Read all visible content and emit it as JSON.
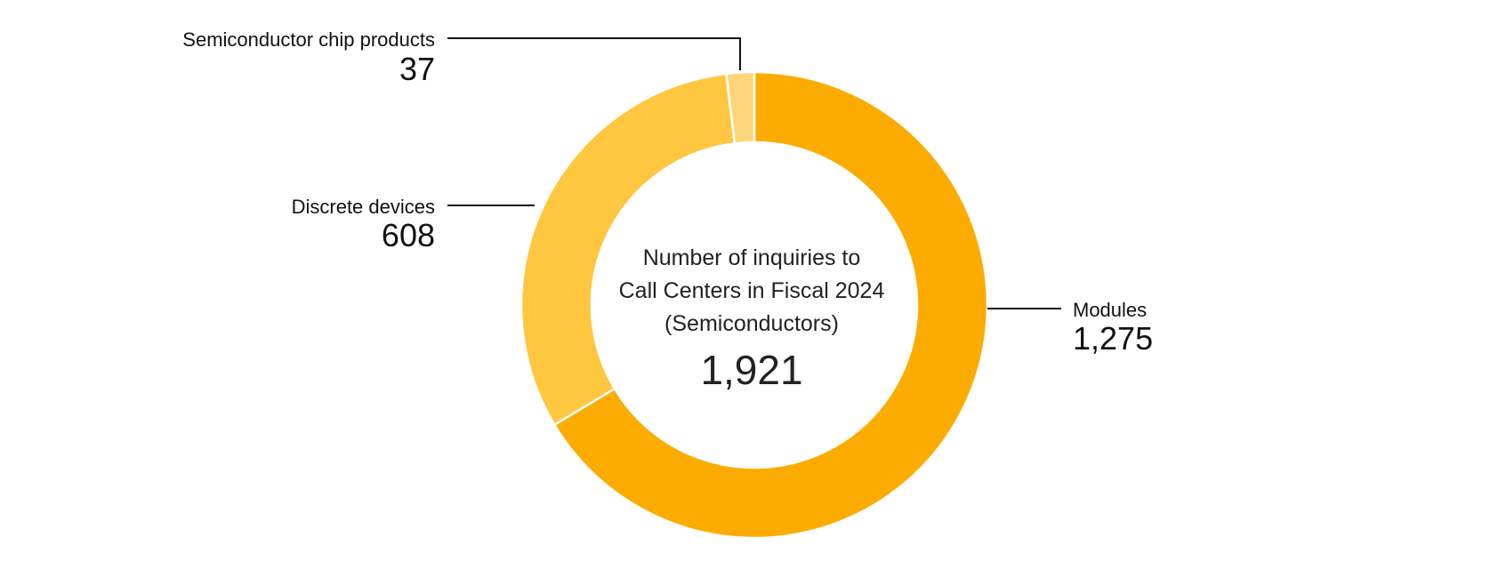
{
  "chart_data": {
    "type": "pie",
    "donut": true,
    "center": {
      "line1": "Number of inquiries to",
      "line2": "Call Centers in Fiscal 2024",
      "line3": "(Semiconductors)",
      "total": "1,921"
    },
    "slices": [
      {
        "label": "Modules",
        "value": 1275,
        "display": "1,275",
        "color": "#FCAC00"
      },
      {
        "label": "Discrete devices",
        "value": 608,
        "display": "608",
        "color": "#FFC640"
      },
      {
        "label": "Semiconductor chip products",
        "value": 37,
        "display": "37",
        "color": "#FFD57A"
      }
    ],
    "legend": "none"
  }
}
